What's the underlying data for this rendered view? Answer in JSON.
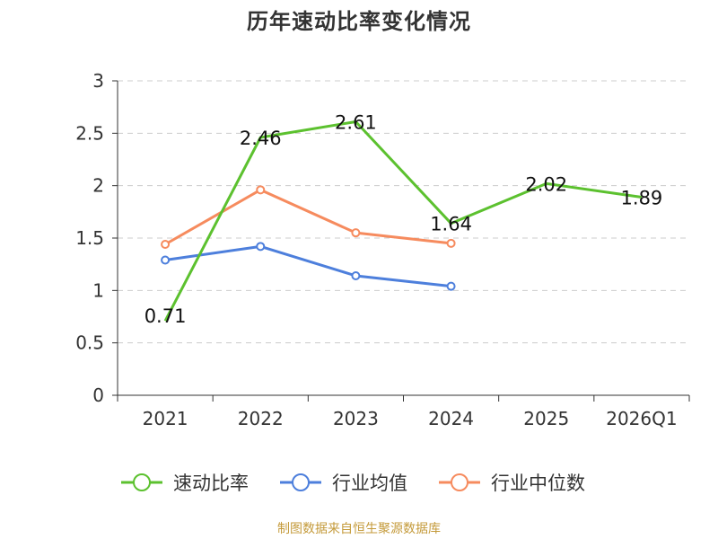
{
  "chart_data": {
    "type": "line",
    "title": "历年速动比率变化情况",
    "categories": [
      "2021",
      "2022",
      "2023",
      "2024",
      "2025",
      "2026Q1"
    ],
    "ylim": [
      0,
      3
    ],
    "yticks": [
      "0",
      "0.5",
      "1",
      "1.5",
      "2",
      "2.5",
      "3"
    ],
    "grid": true,
    "legend_position": "bottom",
    "series": [
      {
        "name": "速动比率",
        "color": "#5cc12f",
        "markers": false,
        "show_labels": true,
        "values": [
          0.71,
          2.46,
          2.61,
          1.64,
          2.02,
          1.89
        ],
        "labels": [
          "0.71",
          "2.46",
          "2.61",
          "1.64",
          "2.02",
          "1.89"
        ]
      },
      {
        "name": "行业均值",
        "color": "#4d7fdc",
        "markers": true,
        "show_labels": false,
        "values": [
          1.29,
          1.42,
          1.14,
          1.04,
          null,
          null
        ]
      },
      {
        "name": "行业中位数",
        "color": "#f68b5e",
        "markers": true,
        "show_labels": false,
        "values": [
          1.44,
          1.96,
          1.55,
          1.45,
          null,
          null
        ]
      }
    ]
  },
  "footer": {
    "source": "制图数据来自恒生聚源数据库"
  }
}
